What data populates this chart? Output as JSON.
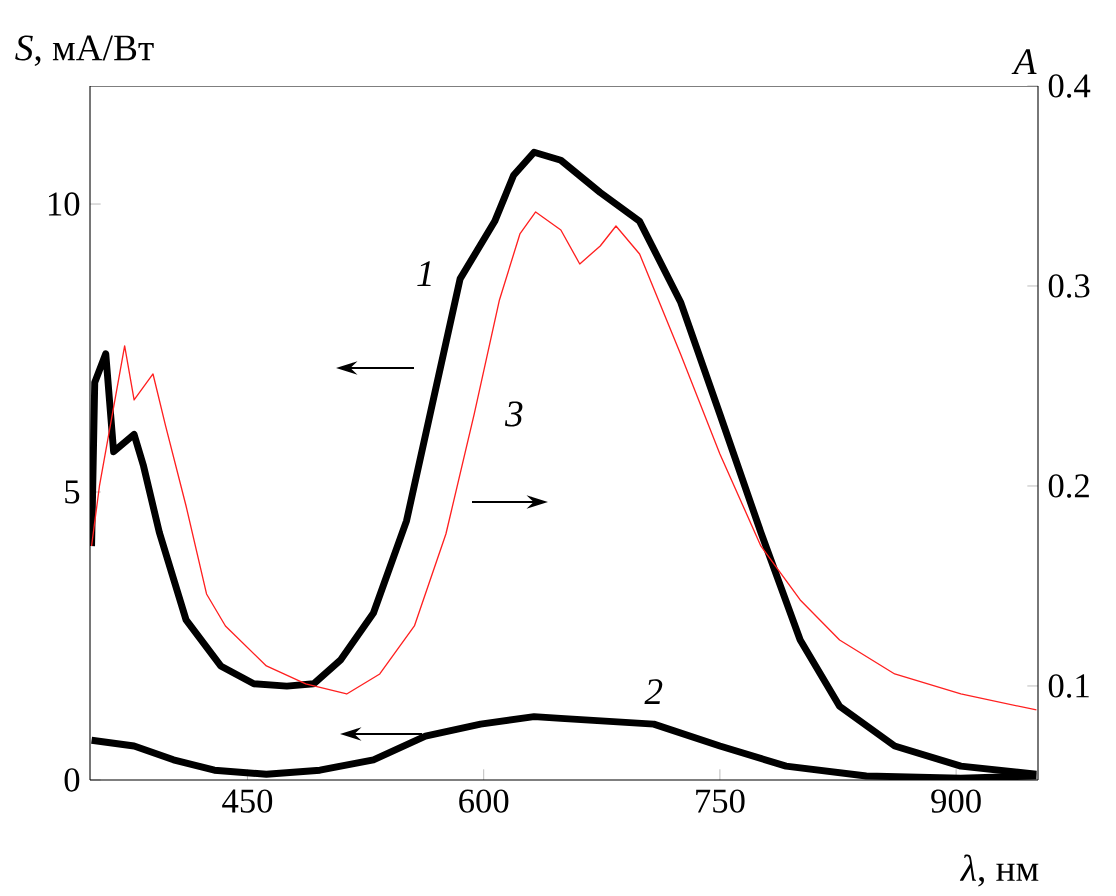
{
  "chart_data": {
    "type": "line",
    "xlabel": "*λ*, нм",
    "ylabel": "*S*, мА/Вт",
    "y2label": "*A*",
    "xlim": [
      350,
      952
    ],
    "xticks": [
      450,
      600,
      750,
      900
    ],
    "ylim": [
      0,
      12.05
    ],
    "yticks": [
      0,
      5,
      10
    ],
    "y2lim": [
      0.053,
      0.4
    ],
    "y2ticks": [
      0.1,
      0.2,
      0.3,
      0.4
    ],
    "grid": false,
    "marker": "none",
    "line_style": "solid",
    "series": [
      {
        "name": "1",
        "color": "#000000",
        "x": [
          351,
          353,
          360,
          365,
          378,
          384,
          394,
          411,
          433,
          454,
          475,
          492,
          509,
          530,
          551,
          568,
          585,
          607,
          619,
          632,
          649,
          674,
          699,
          725,
          750,
          776,
          801,
          826,
          861,
          903,
          951
        ],
        "values": [
          4.06,
          6.9,
          7.4,
          5.7,
          6.0,
          5.45,
          4.3,
          2.78,
          1.98,
          1.67,
          1.63,
          1.67,
          2.08,
          2.9,
          4.5,
          6.6,
          8.7,
          9.7,
          10.5,
          10.9,
          10.76,
          10.2,
          9.7,
          8.3,
          6.35,
          4.3,
          2.43,
          1.28,
          0.59,
          0.24,
          0.1
        ]
      },
      {
        "name": "2",
        "color": "#000000",
        "x": [
          351,
          378,
          403,
          429,
          462,
          496,
          530,
          563,
          598,
          632,
          649,
          708,
          750,
          792,
          843,
          903,
          951
        ],
        "values": [
          0.69,
          0.59,
          0.35,
          0.17,
          0.1,
          0.17,
          0.35,
          0.76,
          0.97,
          1.1,
          1.07,
          0.97,
          0.59,
          0.24,
          0.07,
          0.03,
          0.07
        ]
      },
      {
        "name": "3",
        "color": "#ff2020",
        "axis": "y2",
        "x": [
          351,
          356,
          372,
          378,
          390,
          398,
          411,
          424,
          436,
          462,
          487,
          513,
          534,
          556,
          576,
          594,
          610,
          623,
          633,
          649,
          661,
          674,
          684,
          699,
          725,
          750,
          776,
          801,
          826,
          861,
          903,
          951
        ],
        "values": [
          0.17,
          0.2,
          0.27,
          0.243,
          0.256,
          0.23,
          0.19,
          0.146,
          0.13,
          0.11,
          0.101,
          0.096,
          0.106,
          0.13,
          0.176,
          0.236,
          0.293,
          0.326,
          0.337,
          0.328,
          0.311,
          0.32,
          0.33,
          0.316,
          0.266,
          0.216,
          0.17,
          0.143,
          0.123,
          0.106,
          0.096,
          0.088
        ]
      }
    ]
  }
}
